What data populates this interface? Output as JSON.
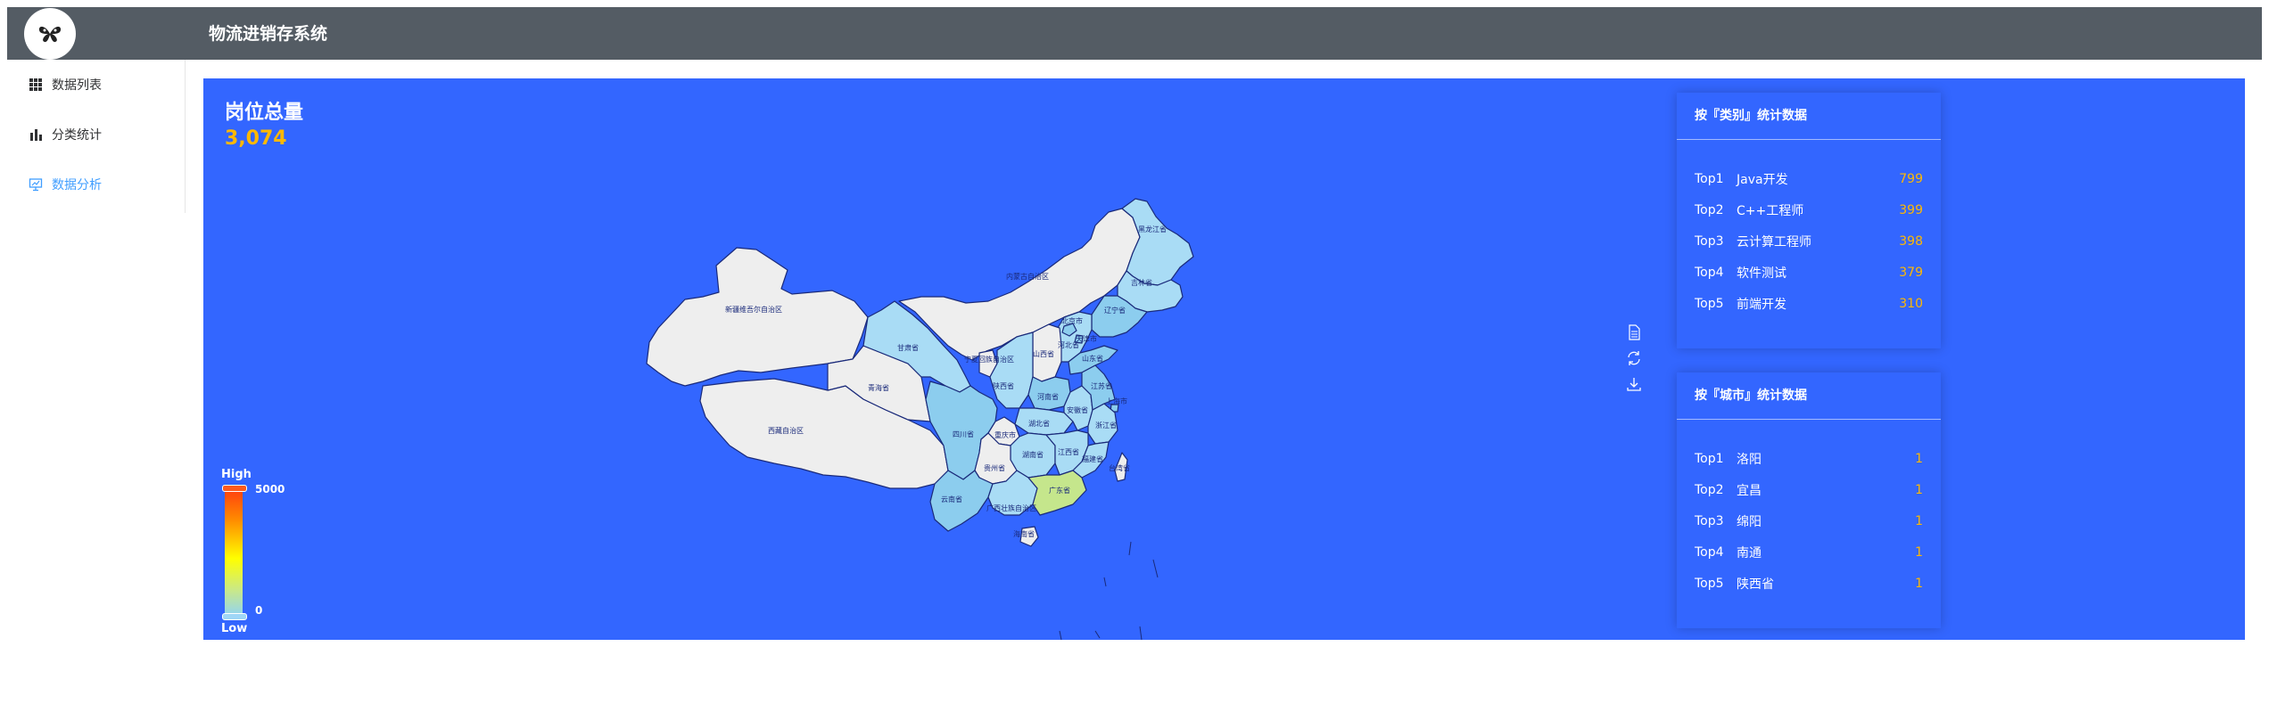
{
  "header": {
    "title": "物流进销存系统",
    "logo_icon": "butterfly-icon"
  },
  "sidebar": {
    "items": [
      {
        "label": "数据列表",
        "icon": "grid-icon",
        "active": false
      },
      {
        "label": "分类统计",
        "icon": "bar-chart-icon",
        "active": false
      },
      {
        "label": "数据分析",
        "icon": "monitor-chart-icon",
        "active": true
      }
    ],
    "active_color": "#409eff"
  },
  "dashboard": {
    "background": "#3366ff",
    "total_title": "岗位总量",
    "total_value": "3,074",
    "legend": {
      "high": "High",
      "low": "Low",
      "max": "5000",
      "min": "0"
    },
    "toolbox": [
      "data-view-icon",
      "restore-icon",
      "save-image-icon"
    ]
  },
  "category_panel": {
    "title": "按『类别』统计数据",
    "items": [
      {
        "rank": "Top1",
        "name": "Java开发",
        "value": "799"
      },
      {
        "rank": "Top2",
        "name": "C++工程师",
        "value": "399"
      },
      {
        "rank": "Top3",
        "name": "云计算工程师",
        "value": "398"
      },
      {
        "rank": "Top4",
        "name": "软件测试",
        "value": "379"
      },
      {
        "rank": "Top5",
        "name": "前端开发",
        "value": "310"
      }
    ]
  },
  "city_panel": {
    "title": "按『城市』统计数据",
    "items": [
      {
        "rank": "Top1",
        "name": "洛阳",
        "value": "1"
      },
      {
        "rank": "Top2",
        "name": "宜昌",
        "value": "1"
      },
      {
        "rank": "Top3",
        "name": "绵阳",
        "value": "1"
      },
      {
        "rank": "Top4",
        "name": "南通",
        "value": "1"
      },
      {
        "rank": "Top5",
        "name": "陕西省",
        "value": "1"
      }
    ]
  },
  "map": {
    "province_labels": [
      "黑龙江省",
      "吉林省",
      "辽宁省",
      "内蒙古自治区",
      "北京市",
      "天津市",
      "河北省",
      "山西省",
      "山东省",
      "河南省",
      "新疆维吾尔自治区",
      "西藏自治区",
      "青海省",
      "甘肃省",
      "宁夏回族自治区",
      "陕西省",
      "四川省",
      "重庆市",
      "湖北省",
      "安徽省",
      "江苏省",
      "上海市",
      "浙江省",
      "湖南省",
      "江西省",
      "福建省",
      "贵州省",
      "云南省",
      "广西壮族自治区",
      "广东省",
      "台湾省",
      "海南省"
    ],
    "colors": {
      "empty": "#eeeeee",
      "light": "#a9dcf5",
      "mid": "#8ccdee",
      "green": "#c5e68c",
      "border": "#1a2a7a"
    }
  }
}
